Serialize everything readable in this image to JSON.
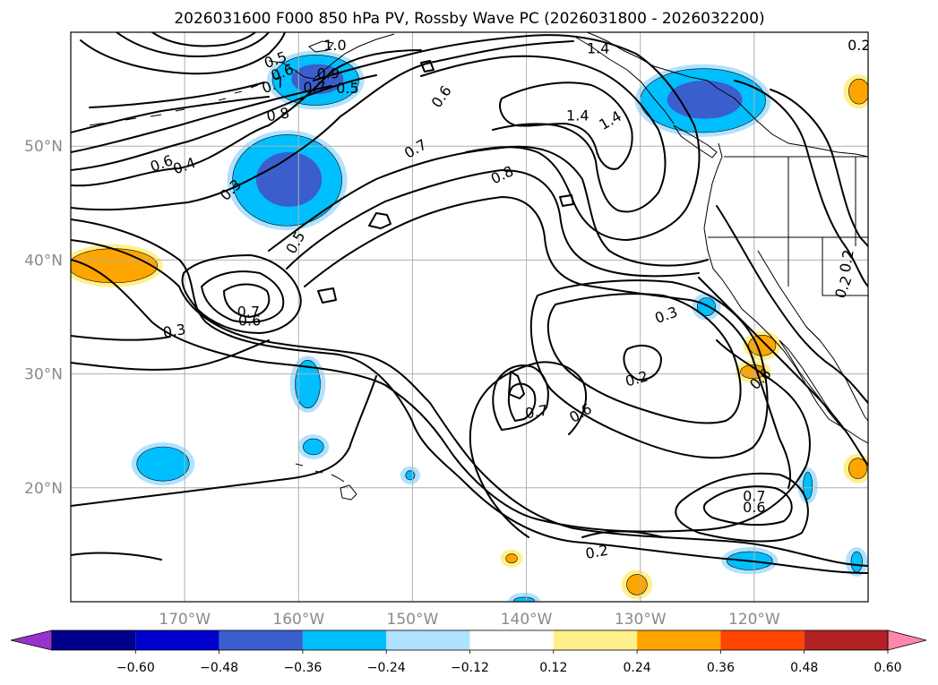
{
  "chart_data": {
    "type": "map",
    "title": "2026031600 F000 850 hPa PV, Rossby Wave PC (2026031800 - 2026032200)",
    "projection": "PlateCarree",
    "extent": {
      "lon": [
        -180,
        -110
      ],
      "lat": [
        10,
        60
      ]
    },
    "lon_ticks": [
      {
        "value": -170,
        "label": "170°W"
      },
      {
        "value": -160,
        "label": "160°W"
      },
      {
        "value": -150,
        "label": "150°W"
      },
      {
        "value": -140,
        "label": "140°W"
      },
      {
        "value": -130,
        "label": "130°W"
      },
      {
        "value": -120,
        "label": "120°W"
      }
    ],
    "lat_ticks": [
      {
        "value": 20,
        "label": "20°N"
      },
      {
        "value": 30,
        "label": "30°N"
      },
      {
        "value": 40,
        "label": "40°N"
      },
      {
        "value": 50,
        "label": "50°N"
      }
    ],
    "grid": true,
    "colorbar": {
      "extend": "both",
      "levels": [
        -0.6,
        -0.48,
        -0.36,
        -0.24,
        -0.12,
        0.12,
        0.24,
        0.36,
        0.48,
        0.6
      ],
      "tick_labels": [
        "−0.60",
        "−0.48",
        "−0.36",
        "−0.24",
        "−0.12",
        "0.12",
        "0.24",
        "0.36",
        "0.48",
        "0.60"
      ],
      "colors": [
        "#9932cc",
        "#00008b",
        "#0000cd",
        "#3a5fcd",
        "#00bfff",
        "#b0e2ff",
        "#ffffff",
        "#fff08c",
        "#ffa500",
        "#ff4500",
        "#b22222",
        "#ff88aa"
      ],
      "under_color": "#9932cc",
      "over_color": "#ff88aa"
    },
    "shading_colors": {
      "strong_negative": "#3a5fcd",
      "negative": "#00bfff",
      "weak_negative": "#b0e2ff",
      "weak_positive": "#fff08c",
      "positive": "#ffa500"
    },
    "contour_labels": [
      {
        "text": "0.5",
        "lon": -162,
        "lat": 57.5,
        "rot": -20
      },
      {
        "text": "0.6",
        "lon": -161.4,
        "lat": 56.4,
        "rot": -20
      },
      {
        "text": "0.7",
        "lon": -162.2,
        "lat": 55.3,
        "rot": -20
      },
      {
        "text": "1.0",
        "lon": -156.8,
        "lat": 58.8,
        "rot": 0
      },
      {
        "text": "0.7",
        "lon": -158.6,
        "lat": 55.1,
        "rot": 0
      },
      {
        "text": "0.5",
        "lon": -155.7,
        "lat": 55.0,
        "rot": 0
      },
      {
        "text": "0.9",
        "lon": -157.4,
        "lat": 56.3,
        "rot": 0
      },
      {
        "text": "0.8",
        "lon": -161.8,
        "lat": 52.7,
        "rot": -10
      },
      {
        "text": "0.6",
        "lon": -172,
        "lat": 48.4,
        "rot": -20
      },
      {
        "text": "0.4",
        "lon": -170,
        "lat": 48.2,
        "rot": -20
      },
      {
        "text": "0.3",
        "lon": -165.9,
        "lat": 46.1,
        "rot": -45
      },
      {
        "text": "0.5",
        "lon": -160.2,
        "lat": 41.5,
        "rot": -60
      },
      {
        "text": "0.6",
        "lon": -147.4,
        "lat": 54.3,
        "rot": -55
      },
      {
        "text": "0.7",
        "lon": -149.7,
        "lat": 49.7,
        "rot": -30
      },
      {
        "text": "0.8",
        "lon": -142.1,
        "lat": 47.4,
        "rot": -25
      },
      {
        "text": "1.4",
        "lon": -135.5,
        "lat": 52.6,
        "rot": 0
      },
      {
        "text": "1.4",
        "lon": -132.6,
        "lat": 52.2,
        "rot": -30
      },
      {
        "text": "1.4",
        "lon": -133.7,
        "lat": 58.5,
        "rot": 0
      },
      {
        "text": "0.2",
        "lon": -110.8,
        "lat": 58.8,
        "rot": 0
      },
      {
        "text": "0.7",
        "lon": -164.4,
        "lat": 35.4,
        "rot": 0
      },
      {
        "text": "0.6",
        "lon": -164.3,
        "lat": 34.6,
        "rot": 0
      },
      {
        "text": "0.3",
        "lon": -170.9,
        "lat": 33.7,
        "rot": -10
      },
      {
        "text": "0.3",
        "lon": -127.7,
        "lat": 35.1,
        "rot": -20
      },
      {
        "text": "0.2",
        "lon": -130.3,
        "lat": 29.5,
        "rot": -15
      },
      {
        "text": "0.7",
        "lon": -139.1,
        "lat": 26.6,
        "rot": -10
      },
      {
        "text": "0.6",
        "lon": -135.2,
        "lat": 26.5,
        "rot": -30
      },
      {
        "text": "0.7",
        "lon": -120,
        "lat": 19.2,
        "rot": 0
      },
      {
        "text": "0.6",
        "lon": -120,
        "lat": 18.2,
        "rot": 0
      },
      {
        "text": "0.2",
        "lon": -133.8,
        "lat": 14.3,
        "rot": -10
      },
      {
        "text": "0.6",
        "lon": -119.4,
        "lat": 29.5,
        "rot": -45
      },
      {
        "text": "0.2",
        "lon": -112.1,
        "lat": 37.6,
        "rot": -70
      },
      {
        "text": "0.2",
        "lon": -111.8,
        "lat": 39.9,
        "rot": -80
      }
    ],
    "shaded_regions": [
      {
        "level": "negative",
        "lon": -158.5,
        "lat": 55.8,
        "rx": 3.8,
        "ry": 2.2,
        "core": "strong_negative"
      },
      {
        "level": "negative",
        "lon": -161,
        "lat": 47,
        "rx": 4.8,
        "ry": 4,
        "core": "strong_negative"
      },
      {
        "level": "negative",
        "lon": -124.5,
        "lat": 54,
        "rx": 5.5,
        "ry": 2.8,
        "core": "strong_negative"
      },
      {
        "level": "positive",
        "lon": -176.3,
        "lat": 39.5,
        "rx": 3.9,
        "ry": 1.5,
        "core": "positive"
      },
      {
        "level": "negative",
        "lon": -159.2,
        "lat": 29.1,
        "rx": 1.1,
        "ry": 2.1,
        "core": null
      },
      {
        "level": "negative",
        "lon": -158.7,
        "lat": 23.6,
        "rx": 0.9,
        "ry": 0.7,
        "core": null
      },
      {
        "level": "negative",
        "lon": -171.9,
        "lat": 22.1,
        "rx": 2.3,
        "ry": 1.5,
        "core": null
      },
      {
        "level": "negative",
        "lon": -124.2,
        "lat": 35.9,
        "rx": 0.8,
        "ry": 0.8,
        "core": null
      },
      {
        "level": "positive",
        "lon": -119.3,
        "lat": 32.5,
        "rx": 1.2,
        "ry": 0.9,
        "core": null
      },
      {
        "level": "positive",
        "lon": -120.1,
        "lat": 30.2,
        "rx": 1.1,
        "ry": 0.6,
        "core": null
      },
      {
        "level": "positive",
        "lon": -110.8,
        "lat": 54.8,
        "rx": 0.9,
        "ry": 1.1,
        "core": null
      },
      {
        "level": "positive",
        "lon": -110.9,
        "lat": 21.7,
        "rx": 0.8,
        "ry": 0.9,
        "core": null
      },
      {
        "level": "negative",
        "lon": -120.4,
        "lat": 13.6,
        "rx": 2.0,
        "ry": 0.8,
        "core": null
      },
      {
        "level": "negative",
        "lon": -115.3,
        "lat": 20.2,
        "rx": 0.4,
        "ry": 1.2,
        "core": null
      },
      {
        "level": "positive",
        "lon": -130.3,
        "lat": 11.5,
        "rx": 0.9,
        "ry": 0.9,
        "core": null
      },
      {
        "level": "negative",
        "lon": -111,
        "lat": 13.5,
        "rx": 0.5,
        "ry": 0.9,
        "core": null
      },
      {
        "level": "negative",
        "lon": -150.2,
        "lat": 21.1,
        "rx": 0.4,
        "ry": 0.4,
        "core": null
      },
      {
        "level": "positive",
        "lon": -141.3,
        "lat": 13.8,
        "rx": 0.5,
        "ry": 0.4,
        "core": null
      },
      {
        "level": "negative",
        "lon": -140.2,
        "lat": 10.1,
        "rx": 0.9,
        "ry": 0.3,
        "core": null
      }
    ]
  }
}
